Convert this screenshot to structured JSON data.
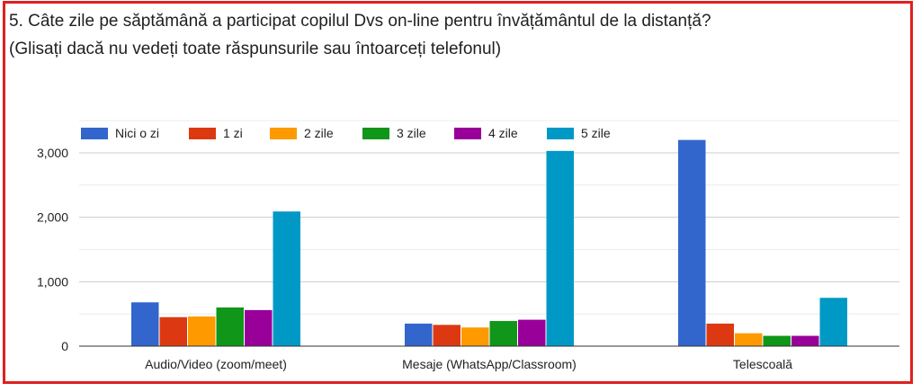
{
  "question": {
    "line1": "5. Câte zile pe săptămână a participat copilul Dvs on-line pentru învățământul de la distanță?",
    "line2": "(Glisați dacă nu vedeți toate răspunsurile sau întoarceți telefonul)"
  },
  "chart_data": {
    "type": "bar",
    "title": "",
    "xlabel": "",
    "ylabel": "",
    "categories": [
      "Audio/Video (zoom/meet)",
      "Mesaje (WhatsApp/Classroom)",
      "Telescoală"
    ],
    "series": [
      {
        "name": "Nici o zi",
        "color": "#3366cc",
        "values": [
          680,
          350,
          3200
        ]
      },
      {
        "name": "1 zi",
        "color": "#dc3912",
        "values": [
          450,
          330,
          350
        ]
      },
      {
        "name": "2 zile",
        "color": "#ff9900",
        "values": [
          460,
          290,
          200
        ]
      },
      {
        "name": "3 zile",
        "color": "#109618",
        "values": [
          600,
          390,
          160
        ]
      },
      {
        "name": "4 zile",
        "color": "#990099",
        "values": [
          560,
          410,
          160
        ]
      },
      {
        "name": "5 zile",
        "color": "#0099c6",
        "values": [
          2090,
          3030,
          750
        ]
      }
    ],
    "ylim": [
      0,
      3500
    ],
    "yticks": [
      0,
      1000,
      2000,
      3000
    ],
    "ytick_labels": [
      "0",
      "1,000",
      "2,000",
      "3,000"
    ],
    "grid": true,
    "legend": "top-left"
  }
}
